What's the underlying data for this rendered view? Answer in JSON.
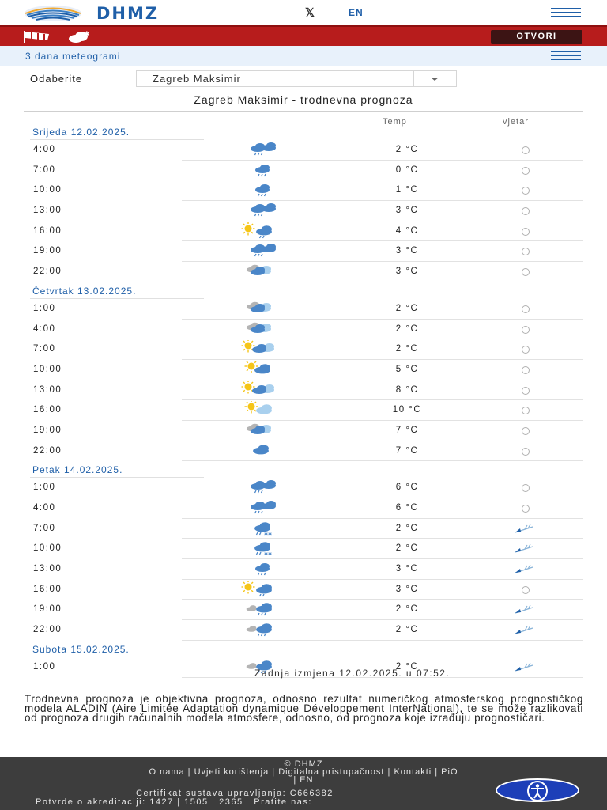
{
  "header": {
    "logo_text": "DHMZ",
    "x_label": "𝕏",
    "lang_label": "EN"
  },
  "warning_bar": {
    "button_label": "OTVORI"
  },
  "subheader": {
    "title": "3 dana meteogrami"
  },
  "location_select": {
    "label": "Odaberite",
    "value": "Zagreb Maksimir"
  },
  "forecast": {
    "title": "Zagreb Maksimir - trodnevna prognoza",
    "col_temp": "Temp",
    "col_wind": "vjetar",
    "days": [
      {
        "label": "Srijeda 12.02.2025.",
        "rows": [
          {
            "time": "4:00",
            "icon": "cloud-rain-icon",
            "temp": "2 °C",
            "wind": "calm-icon"
          },
          {
            "time": "7:00",
            "icon": "cloud-drizzle-icon",
            "temp": "0 °C",
            "wind": "calm-icon"
          },
          {
            "time": "10:00",
            "icon": "cloud-drizzle-icon",
            "temp": "1 °C",
            "wind": "calm-icon"
          },
          {
            "time": "13:00",
            "icon": "cloud-rain-icon",
            "temp": "3 °C",
            "wind": "calm-icon"
          },
          {
            "time": "16:00",
            "icon": "sun-cloud-rain-icon",
            "temp": "4 °C",
            "wind": "calm-icon"
          },
          {
            "time": "19:00",
            "icon": "cloud-rain-icon",
            "temp": "3 °C",
            "wind": "calm-icon"
          },
          {
            "time": "22:00",
            "icon": "clouds-icon",
            "temp": "3 °C",
            "wind": "calm-icon"
          }
        ]
      },
      {
        "label": "Četvrtak 13.02.2025.",
        "rows": [
          {
            "time": "1:00",
            "icon": "clouds-icon",
            "temp": "2 °C",
            "wind": "calm-icon"
          },
          {
            "time": "4:00",
            "icon": "clouds-icon",
            "temp": "2 °C",
            "wind": "calm-icon"
          },
          {
            "time": "7:00",
            "icon": "sun-clouds-icon",
            "temp": "2 °C",
            "wind": "calm-icon"
          },
          {
            "time": "10:00",
            "icon": "sun-cloud-icon",
            "temp": "5 °C",
            "wind": "calm-icon"
          },
          {
            "time": "13:00",
            "icon": "sun-clouds-icon",
            "temp": "8 °C",
            "wind": "calm-icon"
          },
          {
            "time": "16:00",
            "icon": "sun-light-cloud-icon",
            "temp": "10 °C",
            "wind": "calm-icon"
          },
          {
            "time": "19:00",
            "icon": "clouds-icon",
            "temp": "7 °C",
            "wind": "calm-icon"
          },
          {
            "time": "22:00",
            "icon": "cloud-icon",
            "temp": "7 °C",
            "wind": "calm-icon"
          }
        ]
      },
      {
        "label": "Petak 14.02.2025.",
        "rows": [
          {
            "time": "1:00",
            "icon": "cloud-rain-icon",
            "temp": "6 °C",
            "wind": "calm-icon"
          },
          {
            "time": "4:00",
            "icon": "cloud-rain-icon",
            "temp": "6 °C",
            "wind": "calm-icon"
          },
          {
            "time": "7:00",
            "icon": "cloud-snow-rain-icon",
            "temp": "2 °C",
            "wind": "wind-sw-icon"
          },
          {
            "time": "10:00",
            "icon": "cloud-snow-rain-icon",
            "temp": "2 °C",
            "wind": "wind-sw-icon"
          },
          {
            "time": "13:00",
            "icon": "cloud-drizzle-icon",
            "temp": "3 °C",
            "wind": "wind-sw-icon"
          },
          {
            "time": "16:00",
            "icon": "sun-cloud-rain-icon",
            "temp": "3 °C",
            "wind": "calm-icon"
          },
          {
            "time": "19:00",
            "icon": "grey-cloud-rain-icon",
            "temp": "2 °C",
            "wind": "wind-sw-icon"
          },
          {
            "time": "22:00",
            "icon": "grey-cloud-rain-icon",
            "temp": "2 °C",
            "wind": "wind-sw-icon"
          }
        ]
      },
      {
        "label": "Subota 15.02.2025.",
        "rows": [
          {
            "time": "1:00",
            "icon": "grey-cloud-rain-icon",
            "temp": "2 °C",
            "wind": "wind-sw-icon"
          }
        ]
      }
    ],
    "last_update": "Zadnja izmjena 12.02.2025. u 07:52."
  },
  "description": "Trodnevna prognoza je objektivna prognoza, odnosno rezultat numeričkog atmosferskog prognostičkog modela ALADIN (Aire Limitée Adaptation dynamique Développement InterNational), te se može razlikovati od prognoza drugih računalnih modela atmosfere, odnosno, od prognoza koje izrađuju prognostičari.",
  "footer": {
    "copyright": "© DHMZ",
    "links_line": "O nama | Uvjeti korištenja | Digitalna pristupačnost | Kontakti | PiO",
    "lang_line": "| EN",
    "cert": "Certifikat sustava upravljanja: C666382",
    "accreditation": "Potvrde o akreditaciji: 1427 | 1505 | 2365",
    "follow": "Pratite nas:"
  },
  "colors": {
    "brand_blue": "#1f5fa8",
    "red_bar": "#b71c1c",
    "footer_bg": "#3d3d3d",
    "accessibility_blue": "#1d3fb8"
  }
}
